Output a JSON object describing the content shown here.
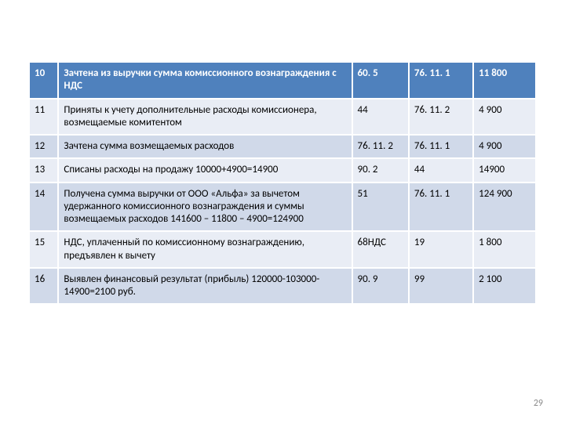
{
  "table": {
    "rows": [
      {
        "band": "hdr",
        "c0": "10",
        "c1": "Зачтена из выручки сумма комиссионного вознаграждения с НДС",
        "c2": "60. 5",
        "c3": "76. 11. 1",
        "c4": "11 800"
      },
      {
        "band": "band-b",
        "c0": "11",
        "c1": "Приняты к учету дополнительные расходы комиссионера, возмещаемые комитентом",
        "c2": "44",
        "c3": "76. 11. 2",
        "c4": "4 900"
      },
      {
        "band": "band-a",
        "c0": "12",
        "c1": "Зачтена сумма возмещаемых расходов",
        "c2": "76. 11. 2",
        "c3": "76. 11. 1",
        "c4": "4 900"
      },
      {
        "band": "band-b",
        "c0": "13",
        "c1": "Списаны расходы на продажу 10000+4900=14900",
        "c2": "90. 2",
        "c3": "44",
        "c4": "14900"
      },
      {
        "band": "band-a",
        "c0": "14",
        "c1": "Получена сумма выручки от ООО «Альфа» за вычетом удержанного комиссионного вознаграждения и суммы возмещаемых расходов 141600 – 11800 – 4900=124900",
        "c2": "51",
        "c3": "76. 11. 1",
        "c4": "124 900"
      },
      {
        "band": "band-b",
        "c0": "15",
        "c1": "НДС, уплаченный по комиссионному вознаграждению, предъявлен к вычету",
        "c2": "68НДС",
        "c3": "19",
        "c4": "1 800"
      },
      {
        "band": "band-a",
        "c0": "16",
        "c1": "Выявлен финансовый результат (прибыль) 120000-103000-14900=2100 руб.",
        "c2": "90. 9",
        "c3": "99",
        "c4": "2 100"
      }
    ]
  },
  "pagenum": "29"
}
